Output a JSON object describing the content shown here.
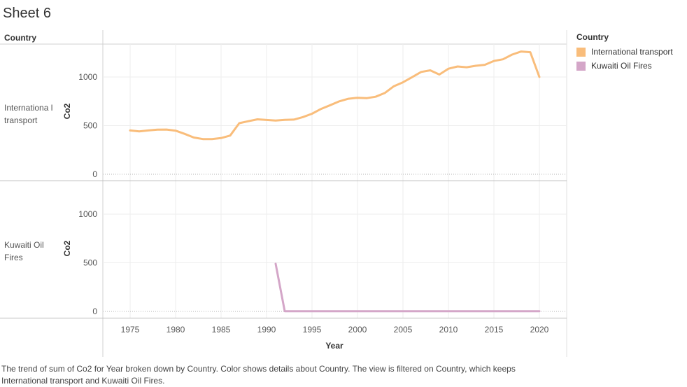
{
  "sheet": {
    "title": "Sheet 6",
    "row_header": "Country",
    "caption": "The trend of sum of Co2 for Year broken down by Country.  Color shows details about Country. The view is filtered on Country, which keeps International transport and Kuwaiti Oil Fires."
  },
  "legend": {
    "title": "Country",
    "items": [
      {
        "label": "International transport",
        "color": "#f9bd7b"
      },
      {
        "label": "Kuwaiti Oil Fires",
        "color": "#d4a6c8"
      }
    ]
  },
  "chart_data": {
    "type": "line",
    "xlabel": "Year",
    "ylabel": "Co2",
    "xlim": [
      1972,
      2023
    ],
    "ylim": [
      0,
      1300
    ],
    "x_ticks": [
      1975,
      1980,
      1985,
      1990,
      1995,
      2000,
      2005,
      2010,
      2015,
      2020
    ],
    "y_ticks": [
      0,
      500,
      1000
    ],
    "grid": true,
    "legend_position": "right",
    "panels": [
      {
        "row_label": "Internationa l transport",
        "name": "International transport",
        "color": "#f9bd7b",
        "x": [
          1975,
          1976,
          1977,
          1978,
          1979,
          1980,
          1981,
          1982,
          1983,
          1984,
          1985,
          1986,
          1987,
          1988,
          1989,
          1990,
          1991,
          1992,
          1993,
          1994,
          1995,
          1996,
          1997,
          1998,
          1999,
          2000,
          2001,
          2002,
          2003,
          2004,
          2005,
          2006,
          2007,
          2008,
          2009,
          2010,
          2011,
          2012,
          2013,
          2014,
          2015,
          2016,
          2017,
          2018,
          2019,
          2020
        ],
        "y": [
          450,
          440,
          450,
          458,
          460,
          448,
          415,
          378,
          362,
          362,
          372,
          398,
          525,
          545,
          565,
          558,
          552,
          560,
          562,
          588,
          622,
          672,
          710,
          750,
          776,
          786,
          782,
          797,
          835,
          905,
          945,
          998,
          1052,
          1068,
          1025,
          1085,
          1108,
          1100,
          1115,
          1125,
          1165,
          1182,
          1230,
          1262,
          1255,
          1000
        ]
      },
      {
        "row_label": "Kuwaiti Oil Fires",
        "name": "Kuwaiti Oil Fires",
        "color": "#d4a6c8",
        "x": [
          1991,
          1992,
          1993,
          1994,
          1995,
          1996,
          1997,
          1998,
          1999,
          2000,
          2001,
          2002,
          2003,
          2004,
          2005,
          2006,
          2007,
          2008,
          2009,
          2010,
          2011,
          2012,
          2013,
          2014,
          2015,
          2016,
          2017,
          2018,
          2019,
          2020
        ],
        "y": [
          490,
          2,
          2,
          2,
          2,
          2,
          2,
          2,
          2,
          2,
          2,
          2,
          2,
          2,
          2,
          2,
          2,
          2,
          2,
          2,
          2,
          2,
          2,
          2,
          2,
          2,
          2,
          2,
          2,
          2
        ]
      }
    ]
  }
}
